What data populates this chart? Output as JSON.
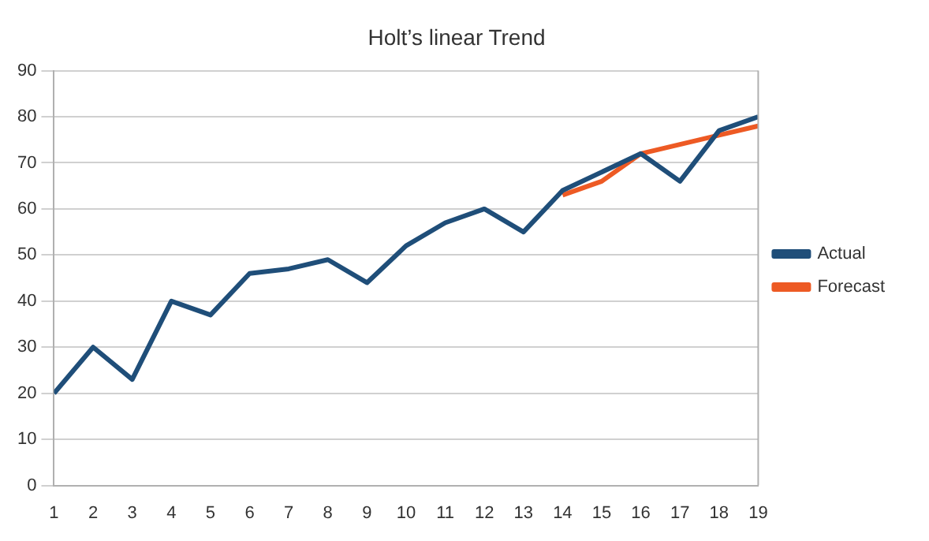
{
  "chart_data": {
    "type": "line",
    "title": "Holt’s linear Trend",
    "x": [
      1,
      2,
      3,
      4,
      5,
      6,
      7,
      8,
      9,
      10,
      11,
      12,
      13,
      14,
      15,
      16,
      17,
      18,
      19
    ],
    "series": [
      {
        "name": "Actual",
        "color": "#1f4e79",
        "values": [
          20,
          30,
          23,
          40,
          37,
          46,
          47,
          49,
          44,
          52,
          57,
          60,
          55,
          64,
          68,
          72,
          66,
          77,
          80
        ]
      },
      {
        "name": "Forecast",
        "color": "#ed5a24",
        "values": [
          null,
          null,
          null,
          null,
          null,
          null,
          null,
          null,
          null,
          null,
          null,
          null,
          null,
          63,
          66,
          72,
          74,
          76,
          78
        ]
      }
    ],
    "xlim": [
      1,
      19
    ],
    "xticks": [
      1,
      2,
      3,
      4,
      5,
      6,
      7,
      8,
      9,
      10,
      11,
      12,
      13,
      14,
      15,
      16,
      17,
      18,
      19
    ],
    "ylim": [
      0,
      90
    ],
    "yticks": [
      0,
      10,
      20,
      30,
      40,
      50,
      60,
      70,
      80,
      90
    ],
    "grid": "y",
    "legend": "right",
    "marker": "none"
  }
}
